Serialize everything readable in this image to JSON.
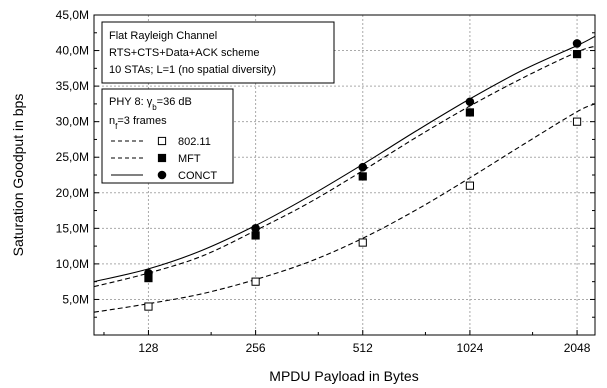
{
  "chart_data": {
    "type": "line",
    "xlabel": "MPDU Payload in Bytes",
    "ylabel": "Saturation Goodput in bps",
    "x_scale": "log2",
    "x_ticks": [
      "128",
      "256",
      "512",
      "1024",
      "2048"
    ],
    "y_ticks": [
      "5,0M",
      "10,0M",
      "15,0M",
      "20,0M",
      "25,0M",
      "30,0M",
      "35,0M",
      "40,0M",
      "45,0M"
    ],
    "xlim": [
      90,
      2300
    ],
    "ylim": [
      0,
      45000000
    ],
    "grid": true,
    "annotation": {
      "lines": [
        "Flat Rayleigh Channel",
        "RTS+CTS+Data+ACK scheme",
        "10 STAs; L=1 (no spatial diversity)"
      ]
    },
    "legend": {
      "phy_prefix": "PHY 8: ",
      "gamma_symbol": "γ",
      "gamma_sub": "b",
      "gamma_value": "=36 dB",
      "nf_symbol": "n",
      "nf_sub": "f",
      "nf_value": "=3 frames"
    },
    "series": [
      {
        "name": "802.11",
        "line_style": "dashed",
        "marker": "open-square",
        "points_x": [
          128,
          256,
          512,
          1024,
          2048
        ],
        "points_y": [
          4000000,
          7500000,
          13000000,
          21000000,
          30000000
        ],
        "curve_x": [
          90,
          128,
          181,
          256,
          362,
          512,
          724,
          1024,
          1448,
          2048,
          2300
        ],
        "curve_y": [
          3200000,
          4400000,
          5800000,
          7800000,
          10300000,
          13600000,
          17600000,
          22100000,
          26800000,
          31400000,
          32500000
        ]
      },
      {
        "name": "MFT",
        "line_style": "dashed",
        "marker": "filled-square",
        "points_x": [
          128,
          256,
          512,
          1024,
          2048
        ],
        "points_y": [
          8000000,
          14000000,
          22300000,
          31300000,
          39500000
        ],
        "curve_x": [
          90,
          128,
          181,
          256,
          362,
          512,
          724,
          1024,
          1448,
          2048,
          2300
        ],
        "curve_y": [
          6800000,
          8700000,
          11100000,
          14700000,
          18600000,
          23100000,
          27800000,
          32200000,
          36200000,
          39800000,
          40600000
        ]
      },
      {
        "name": "CONCT",
        "line_style": "solid",
        "marker": "filled-circle",
        "points_x": [
          128,
          256,
          512,
          1024,
          2048
        ],
        "points_y": [
          8700000,
          15000000,
          23600000,
          32800000,
          41000000
        ],
        "curve_x": [
          90,
          128,
          181,
          256,
          362,
          512,
          724,
          1024,
          1448,
          2048,
          2300
        ],
        "curve_y": [
          7500000,
          9300000,
          11900000,
          15400000,
          19500000,
          24000000,
          28700000,
          33200000,
          37300000,
          40700000,
          42000000
        ]
      }
    ]
  }
}
